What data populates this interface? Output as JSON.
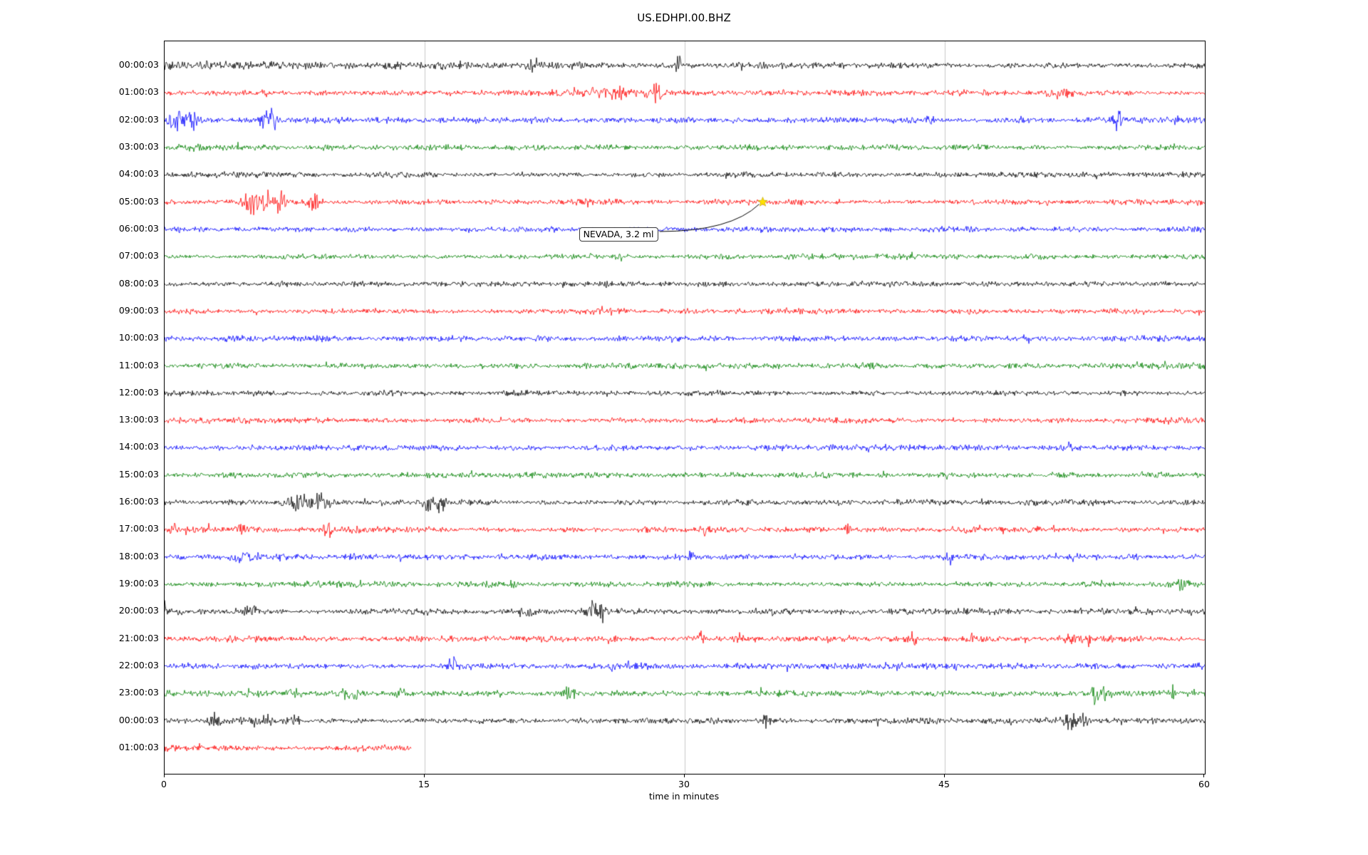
{
  "chart_data": {
    "type": "helicorder-seismogram",
    "title": "US.EDHPI.00.BHZ",
    "xlabel": "time in minutes",
    "x_range": [
      0,
      60
    ],
    "x_ticks": [
      0,
      15,
      30,
      45,
      60
    ],
    "grid_minutes": [
      15,
      30,
      45
    ],
    "grid_color": "#c8c8c8",
    "minutes_per_row": 60,
    "annotation": {
      "text": "NEVADA, 3.2 ml",
      "star_t": 34.5,
      "star_row": 5,
      "star_color": "#ffe100",
      "box_t": 23.9,
      "box_row": 6,
      "box_dy": 7
    },
    "rows": [
      {
        "label": "00:00:03",
        "color": "#000000",
        "amp": 3.0,
        "events": [
          {
            "t": 4.0,
            "dur": 16.0,
            "amp": 1.3
          },
          {
            "t": 21.3,
            "dur": 0.25,
            "amp": 9
          },
          {
            "t": 29.6,
            "dur": 0.2,
            "amp": 13
          }
        ]
      },
      {
        "label": "01:00:03",
        "color": "#ff0000",
        "amp": 2.8,
        "events": [
          {
            "t": 23.2,
            "dur": 0.8,
            "amp": 4
          },
          {
            "t": 25.8,
            "dur": 2.2,
            "amp": 5
          },
          {
            "t": 28.3,
            "dur": 0.7,
            "amp": 9
          },
          {
            "t": 51.6,
            "dur": 1.2,
            "amp": 3
          }
        ]
      },
      {
        "label": "02:00:03",
        "color": "#0000ff",
        "amp": 3.0,
        "events": [
          {
            "t": 0.7,
            "dur": 0.5,
            "amp": 13
          },
          {
            "t": 1.6,
            "dur": 0.35,
            "amp": 16
          },
          {
            "t": 6.0,
            "dur": 0.7,
            "amp": 11
          },
          {
            "t": 44.2,
            "dur": 0.3,
            "amp": 4
          },
          {
            "t": 55.0,
            "dur": 0.45,
            "amp": 11
          }
        ]
      },
      {
        "label": "03:00:03",
        "color": "#008000",
        "amp": 2.7,
        "events": [
          {
            "t": 1.5,
            "dur": 1.2,
            "amp": 2
          }
        ]
      },
      {
        "label": "04:00:03",
        "color": "#000000",
        "amp": 2.8,
        "events": []
      },
      {
        "label": "05:00:03",
        "color": "#ff0000",
        "amp": 2.8,
        "events": [
          {
            "t": 5.0,
            "dur": 0.6,
            "amp": 12
          },
          {
            "t": 5.9,
            "dur": 0.45,
            "amp": 14
          },
          {
            "t": 6.6,
            "dur": 0.5,
            "amp": 12
          },
          {
            "t": 8.6,
            "dur": 0.6,
            "amp": 8
          }
        ]
      },
      {
        "label": "06:00:03",
        "color": "#0000ff",
        "amp": 2.8,
        "events": []
      },
      {
        "label": "07:00:03",
        "color": "#008000",
        "amp": 2.7,
        "events": []
      },
      {
        "label": "08:00:03",
        "color": "#000000",
        "amp": 2.6,
        "events": []
      },
      {
        "label": "09:00:03",
        "color": "#ff0000",
        "amp": 2.7,
        "events": []
      },
      {
        "label": "10:00:03",
        "color": "#0000ff",
        "amp": 2.9,
        "events": []
      },
      {
        "label": "11:00:03",
        "color": "#008000",
        "amp": 2.7,
        "events": []
      },
      {
        "label": "12:00:03",
        "color": "#000000",
        "amp": 2.6,
        "events": []
      },
      {
        "label": "13:00:03",
        "color": "#ff0000",
        "amp": 2.7,
        "events": []
      },
      {
        "label": "14:00:03",
        "color": "#0000ff",
        "amp": 2.9,
        "events": [
          {
            "t": 52.2,
            "dur": 0.3,
            "amp": 5
          }
        ]
      },
      {
        "label": "15:00:03",
        "color": "#008000",
        "amp": 2.7,
        "events": []
      },
      {
        "label": "16:00:03",
        "color": "#000000",
        "amp": 2.7,
        "events": [
          {
            "t": 7.7,
            "dur": 1.1,
            "amp": 9
          },
          {
            "t": 9.0,
            "dur": 0.7,
            "amp": 7
          },
          {
            "t": 15.2,
            "dur": 0.45,
            "amp": 8
          },
          {
            "t": 15.9,
            "dur": 0.35,
            "amp": 10
          }
        ]
      },
      {
        "label": "17:00:03",
        "color": "#ff0000",
        "amp": 3.0,
        "events": [
          {
            "t": 0.5,
            "dur": 0.3,
            "amp": 7
          },
          {
            "t": 4.4,
            "dur": 0.25,
            "amp": 6
          },
          {
            "t": 9.4,
            "dur": 0.3,
            "amp": 11
          },
          {
            "t": 31.2,
            "dur": 0.35,
            "amp": 5
          },
          {
            "t": 39.4,
            "dur": 0.35,
            "amp": 5
          }
        ]
      },
      {
        "label": "18:00:03",
        "color": "#0000ff",
        "amp": 3.2,
        "events": [
          {
            "t": 4.8,
            "dur": 1.4,
            "amp": 3
          },
          {
            "t": 30.4,
            "dur": 0.2,
            "amp": 7
          },
          {
            "t": 45.3,
            "dur": 0.2,
            "amp": 8
          }
        ]
      },
      {
        "label": "19:00:03",
        "color": "#008000",
        "amp": 3.0,
        "events": [
          {
            "t": 11.2,
            "dur": 0.35,
            "amp": 5
          },
          {
            "t": 20.1,
            "dur": 0.35,
            "amp": 4
          },
          {
            "t": 58.6,
            "dur": 0.5,
            "amp": 5
          }
        ]
      },
      {
        "label": "20:00:03",
        "color": "#000000",
        "amp": 3.2,
        "events": [
          {
            "t": 0.06,
            "dur": 0.08,
            "amp": 26
          },
          {
            "t": 5.0,
            "dur": 0.5,
            "amp": 6
          },
          {
            "t": 20.8,
            "dur": 0.6,
            "amp": 6
          },
          {
            "t": 24.7,
            "dur": 0.5,
            "amp": 11
          },
          {
            "t": 25.3,
            "dur": 0.3,
            "amp": 8
          }
        ]
      },
      {
        "label": "21:00:03",
        "color": "#ff0000",
        "amp": 3.0,
        "events": [
          {
            "t": 30.9,
            "dur": 0.3,
            "amp": 8
          },
          {
            "t": 33.1,
            "dur": 0.3,
            "amp": 6
          },
          {
            "t": 43.2,
            "dur": 0.3,
            "amp": 7
          },
          {
            "t": 46.6,
            "dur": 0.25,
            "amp": 6
          },
          {
            "t": 52.3,
            "dur": 0.5,
            "amp": 7
          },
          {
            "t": 53.2,
            "dur": 0.35,
            "amp": 6
          }
        ]
      },
      {
        "label": "22:00:03",
        "color": "#0000ff",
        "amp": 3.2,
        "events": [
          {
            "t": 16.6,
            "dur": 0.3,
            "amp": 9
          }
        ]
      },
      {
        "label": "23:00:03",
        "color": "#008000",
        "amp": 3.0,
        "events": [
          {
            "t": 7.4,
            "dur": 0.45,
            "amp": 6
          },
          {
            "t": 10.3,
            "dur": 0.6,
            "amp": 7
          },
          {
            "t": 11.1,
            "dur": 0.4,
            "amp": 6
          },
          {
            "t": 13.6,
            "dur": 0.4,
            "amp": 5
          },
          {
            "t": 23.3,
            "dur": 0.5,
            "amp": 5
          },
          {
            "t": 53.6,
            "dur": 0.5,
            "amp": 9
          },
          {
            "t": 54.3,
            "dur": 0.4,
            "amp": 7
          },
          {
            "t": 58.3,
            "dur": 0.4,
            "amp": 5
          }
        ]
      },
      {
        "label": "00:00:03",
        "color": "#000000",
        "amp": 3.0,
        "events": [
          {
            "t": 2.9,
            "dur": 0.4,
            "amp": 6
          },
          {
            "t": 5.6,
            "dur": 1.1,
            "amp": 5
          },
          {
            "t": 7.4,
            "dur": 0.5,
            "amp": 5
          },
          {
            "t": 34.7,
            "dur": 0.3,
            "amp": 5
          },
          {
            "t": 52.2,
            "dur": 0.6,
            "amp": 9
          },
          {
            "t": 53.0,
            "dur": 0.4,
            "amp": 7
          }
        ]
      },
      {
        "label": "01:00:03",
        "color": "#ff0000",
        "amp": 3.0,
        "t_end": 14.2,
        "events": []
      }
    ]
  }
}
